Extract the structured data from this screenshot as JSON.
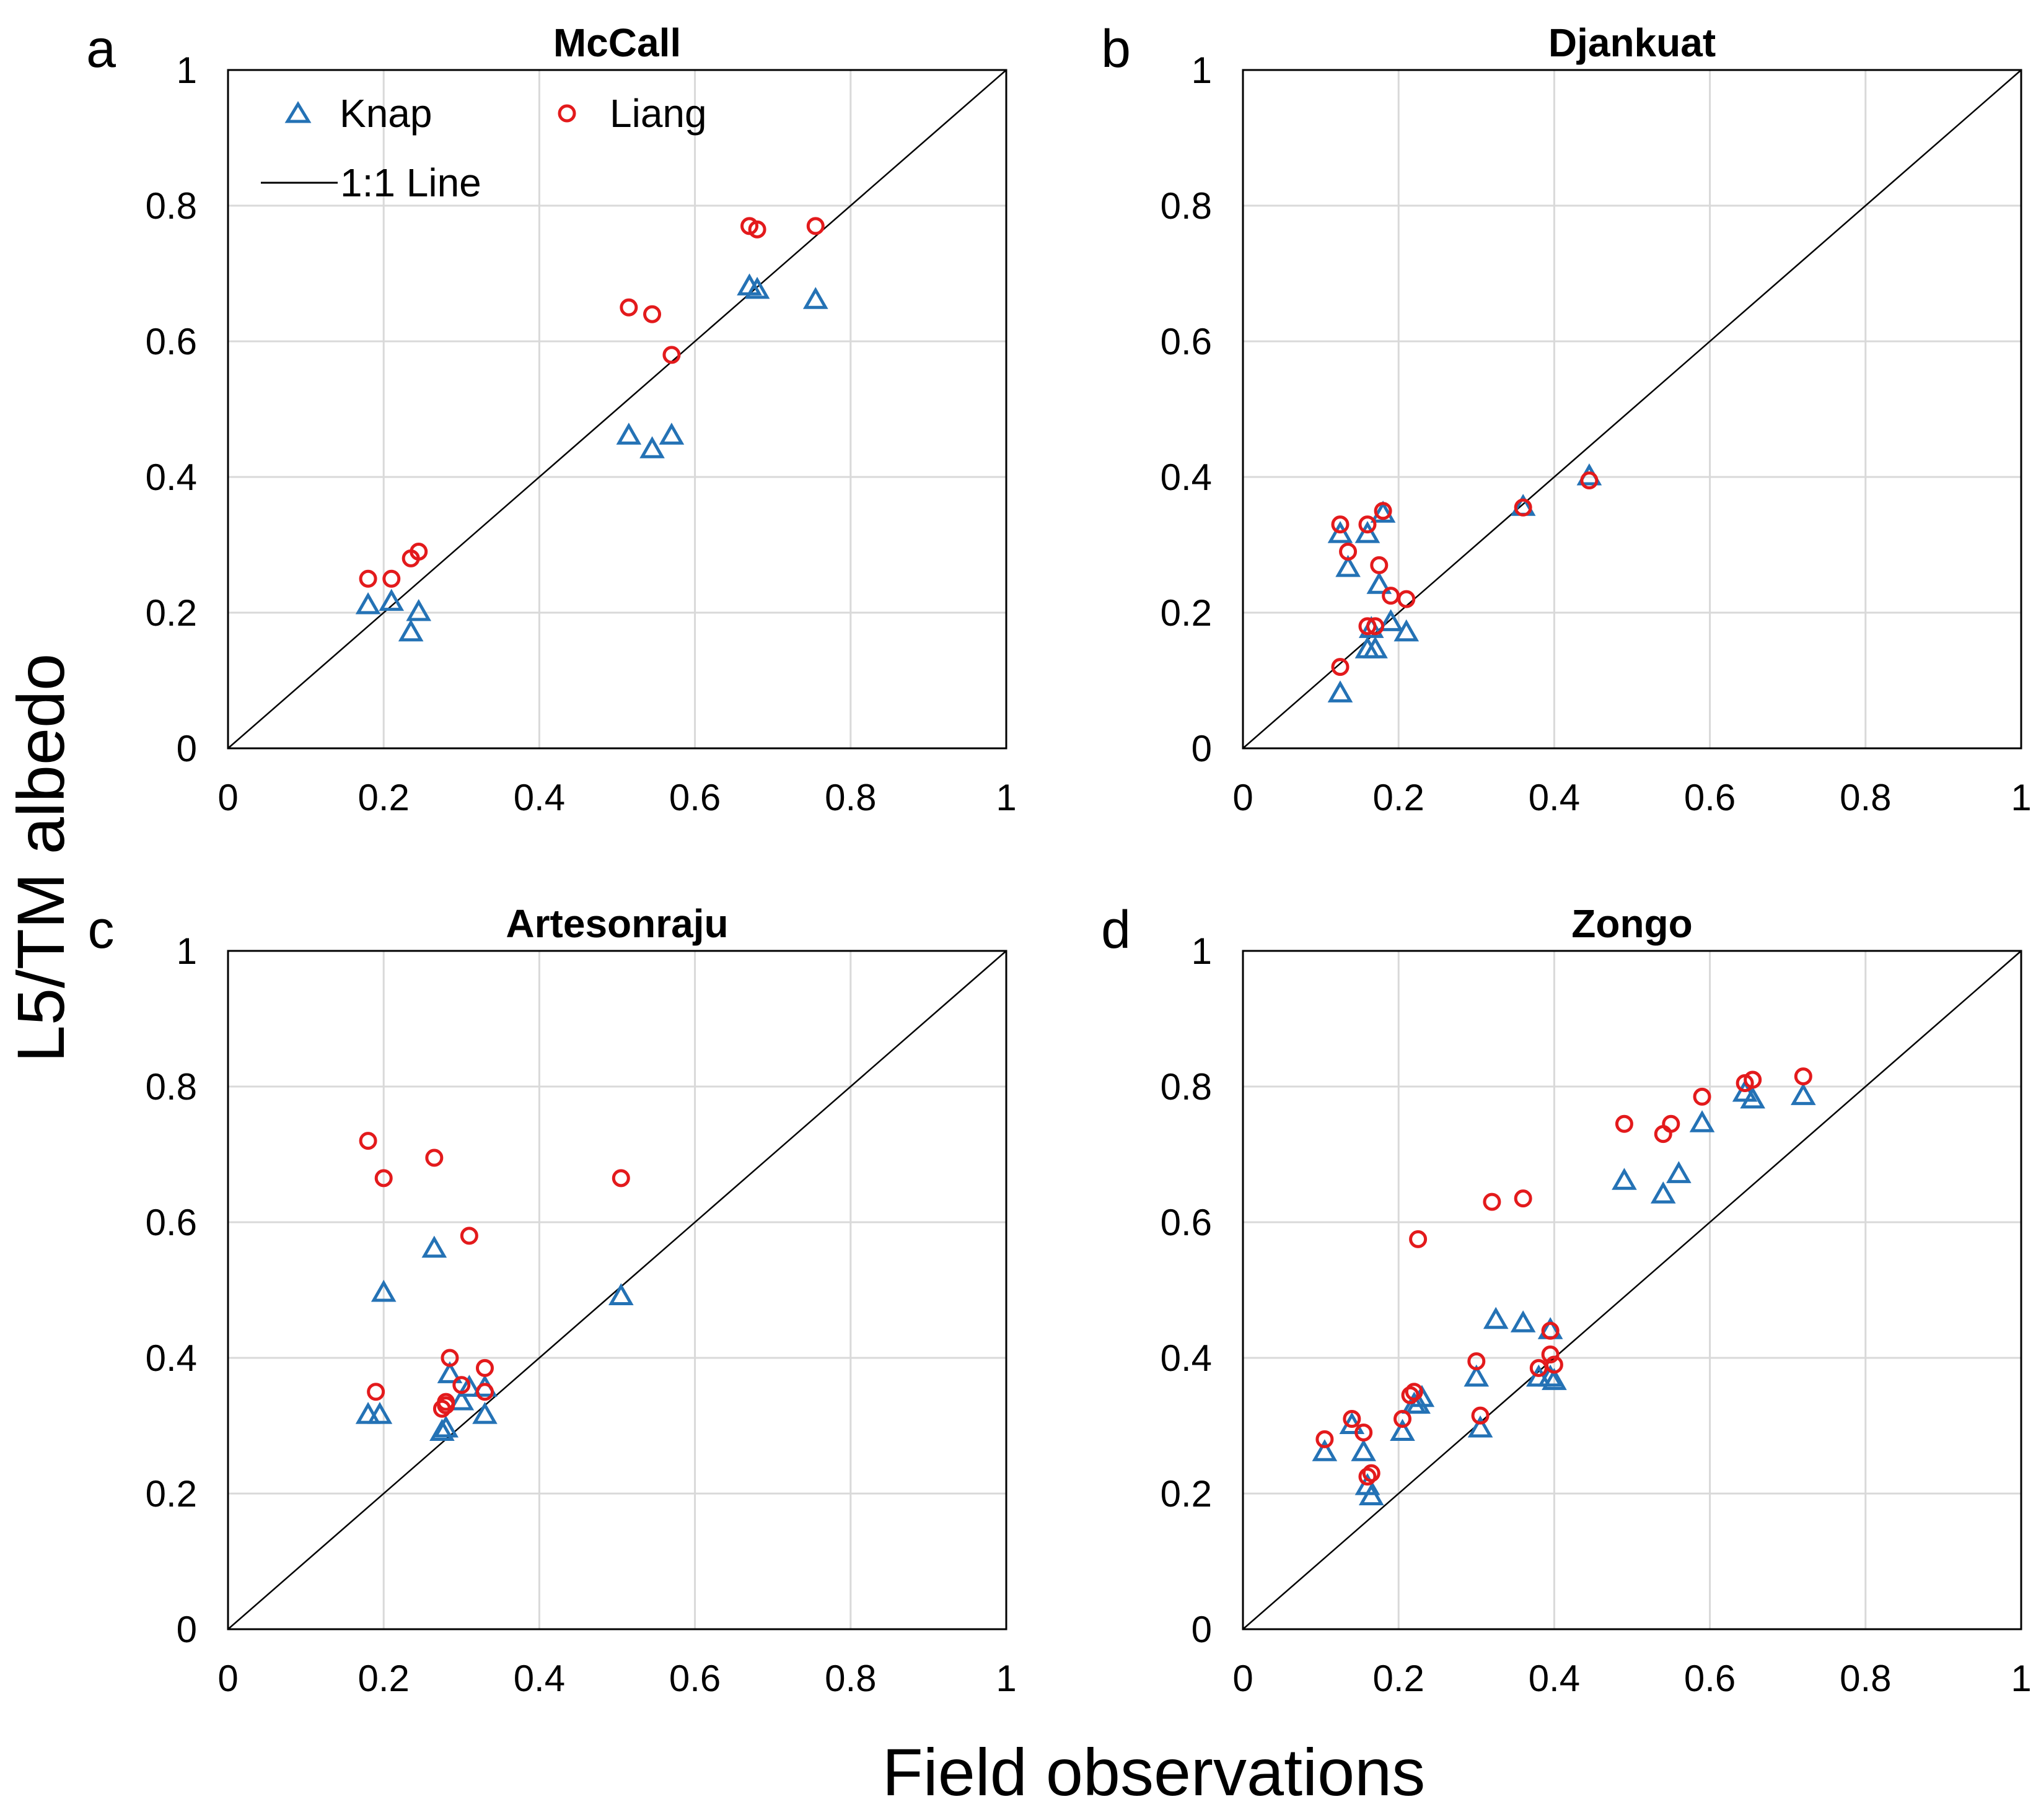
{
  "figure": {
    "xlabel": "Field observations",
    "ylabel": "L5/TM albedo"
  },
  "legend": {
    "knap": "Knap",
    "liang": "Liang",
    "line": "1:1 Line"
  },
  "colors": {
    "knap": "#2472b5",
    "liang": "#e31a1c",
    "grid": "#d9d9d9",
    "line": "#000000"
  },
  "chart_data": [
    {
      "type": "scatter",
      "panel": "a",
      "title": "McCall",
      "xlim": [
        0,
        1
      ],
      "ylim": [
        0,
        1
      ],
      "xticks": [
        "0",
        "0.2",
        "0.4",
        "0.6",
        "0.8",
        "1"
      ],
      "yticks": [
        "0",
        "0.2",
        "0.4",
        "0.6",
        "0.8",
        "1"
      ],
      "series": [
        {
          "name": "Knap",
          "x": [
            0.18,
            0.21,
            0.235,
            0.245,
            0.515,
            0.545,
            0.57,
            0.67,
            0.68,
            0.755
          ],
          "y": [
            0.21,
            0.215,
            0.17,
            0.2,
            0.46,
            0.44,
            0.46,
            0.68,
            0.675,
            0.66
          ]
        },
        {
          "name": "Liang",
          "x": [
            0.18,
            0.21,
            0.235,
            0.245,
            0.515,
            0.545,
            0.57,
            0.67,
            0.68,
            0.755
          ],
          "y": [
            0.25,
            0.25,
            0.28,
            0.29,
            0.65,
            0.64,
            0.58,
            0.77,
            0.765,
            0.77
          ]
        }
      ]
    },
    {
      "type": "scatter",
      "panel": "b",
      "title": "Djankuat",
      "xlim": [
        0,
        1
      ],
      "ylim": [
        0,
        1
      ],
      "xticks": [
        "0",
        "0.2",
        "0.4",
        "0.6",
        "0.8",
        "1"
      ],
      "yticks": [
        "0",
        "0.2",
        "0.4",
        "0.6",
        "0.8",
        "1"
      ],
      "series": [
        {
          "name": "Knap",
          "x": [
            0.125,
            0.125,
            0.135,
            0.16,
            0.16,
            0.165,
            0.17,
            0.175,
            0.18,
            0.19,
            0.21,
            0.36,
            0.445
          ],
          "y": [
            0.08,
            0.315,
            0.265,
            0.315,
            0.145,
            0.175,
            0.145,
            0.24,
            0.345,
            0.185,
            0.17,
            0.355,
            0.4
          ]
        },
        {
          "name": "Liang",
          "x": [
            0.125,
            0.125,
            0.135,
            0.16,
            0.16,
            0.17,
            0.175,
            0.18,
            0.19,
            0.21,
            0.36,
            0.445
          ],
          "y": [
            0.12,
            0.33,
            0.29,
            0.33,
            0.18,
            0.18,
            0.27,
            0.35,
            0.225,
            0.22,
            0.355,
            0.395
          ]
        }
      ]
    },
    {
      "type": "scatter",
      "panel": "c",
      "title": "Artesonraju",
      "xlim": [
        0,
        1
      ],
      "ylim": [
        0,
        1
      ],
      "xticks": [
        "0",
        "0.2",
        "0.4",
        "0.6",
        "0.8",
        "1"
      ],
      "yticks": [
        "0",
        "0.2",
        "0.4",
        "0.6",
        "0.8",
        "1"
      ],
      "series": [
        {
          "name": "Knap",
          "x": [
            0.18,
            0.195,
            0.2,
            0.265,
            0.275,
            0.28,
            0.285,
            0.3,
            0.31,
            0.33,
            0.33,
            0.505
          ],
          "y": [
            0.315,
            0.315,
            0.495,
            0.56,
            0.29,
            0.295,
            0.375,
            0.335,
            0.355,
            0.315,
            0.355,
            0.49
          ]
        },
        {
          "name": "Liang",
          "x": [
            0.18,
            0.19,
            0.2,
            0.265,
            0.275,
            0.28,
            0.28,
            0.285,
            0.3,
            0.31,
            0.33,
            0.33,
            0.505
          ],
          "y": [
            0.72,
            0.35,
            0.665,
            0.695,
            0.325,
            0.33,
            0.335,
            0.4,
            0.36,
            0.58,
            0.385,
            0.35,
            0.665
          ]
        }
      ]
    },
    {
      "type": "scatter",
      "panel": "d",
      "title": "Zongo",
      "xlim": [
        0,
        1
      ],
      "ylim": [
        0,
        1
      ],
      "xticks": [
        "0",
        "0.2",
        "0.4",
        "0.6",
        "0.8",
        "1"
      ],
      "yticks": [
        "0",
        "0.2",
        "0.4",
        "0.6",
        "0.8",
        "1"
      ],
      "series": [
        {
          "name": "Knap",
          "x": [
            0.105,
            0.14,
            0.155,
            0.16,
            0.165,
            0.205,
            0.22,
            0.225,
            0.23,
            0.3,
            0.305,
            0.325,
            0.36,
            0.38,
            0.395,
            0.395,
            0.4,
            0.49,
            0.54,
            0.56,
            0.59,
            0.645,
            0.655,
            0.72
          ],
          "y": [
            0.26,
            0.3,
            0.26,
            0.21,
            0.195,
            0.29,
            0.33,
            0.33,
            0.34,
            0.37,
            0.295,
            0.455,
            0.45,
            0.37,
            0.44,
            0.37,
            0.365,
            0.66,
            0.64,
            0.67,
            0.745,
            0.79,
            0.78,
            0.785
          ]
        },
        {
          "name": "Liang",
          "x": [
            0.105,
            0.14,
            0.155,
            0.16,
            0.165,
            0.205,
            0.215,
            0.22,
            0.225,
            0.3,
            0.305,
            0.32,
            0.36,
            0.38,
            0.395,
            0.395,
            0.4,
            0.49,
            0.54,
            0.55,
            0.59,
            0.645,
            0.655,
            0.72
          ],
          "y": [
            0.28,
            0.31,
            0.29,
            0.225,
            0.23,
            0.31,
            0.345,
            0.35,
            0.575,
            0.395,
            0.315,
            0.63,
            0.635,
            0.385,
            0.44,
            0.405,
            0.39,
            0.745,
            0.73,
            0.745,
            0.785,
            0.805,
            0.81,
            0.815
          ]
        }
      ]
    }
  ]
}
